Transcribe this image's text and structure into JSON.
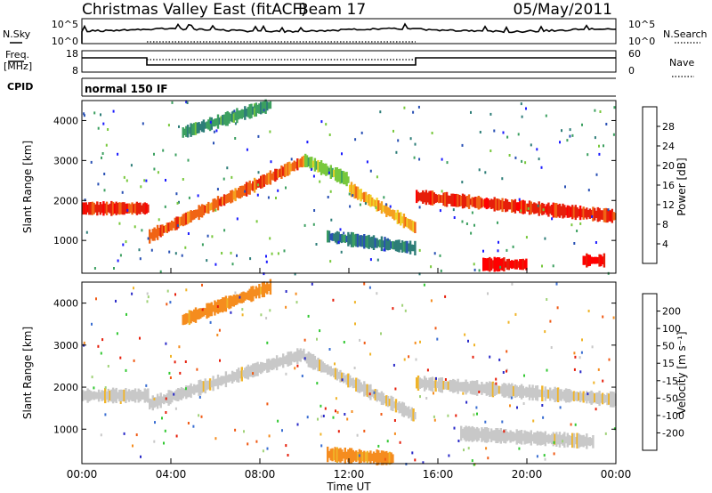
{
  "header": {
    "title": "Christmas Valley East (fitACF)",
    "beam": "Beam 17",
    "date": "05/May/2011"
  },
  "top_panels": {
    "nsky_label": "N.Sky",
    "nsky_tick_high": "10^5",
    "nsky_tick_low": "10^0",
    "nsearch_label": "N.Search",
    "nsearch_tick_high": "10^5",
    "nsearch_tick_low": "10^0",
    "freq_label_1": "Freq.",
    "freq_label_2": "[MHz]",
    "freq_tick_high": "18",
    "freq_tick_low": "8",
    "nave_label": "Nave",
    "nave_tick_high": "60",
    "nave_tick_low": "0",
    "cpid_label": "CPID",
    "cpid_value": "normal 150 IF"
  },
  "chart_data": [
    {
      "type": "heatmap",
      "panel": "power",
      "ylabel": "Slant Range [km]",
      "xlabel": "",
      "ylim": [
        180,
        4500
      ],
      "y_ticks": [
        "1000",
        "2000",
        "3000",
        "4000"
      ],
      "colorbar": {
        "label": "Power [dB]",
        "ticks": [
          "4",
          "8",
          "12",
          "16",
          "20",
          "24",
          "28"
        ],
        "colors": [
          "#1a1aff",
          "#2850b4",
          "#2d7d78",
          "#3ca060",
          "#78c83c",
          "#f0d228",
          "#f5a01e",
          "#f06414",
          "#e61e0a",
          "#ff0000"
        ]
      },
      "bands": [
        {
          "start_h": 0.0,
          "end_h": 3.0,
          "range_start_km": 1800,
          "range_end_km": 1800,
          "power_db": 26
        },
        {
          "start_h": 3.0,
          "end_h": 10.0,
          "range_start_km": 1100,
          "range_end_km": 3000,
          "power_db": 25
        },
        {
          "start_h": 10.0,
          "end_h": 12.0,
          "range_start_km": 3000,
          "range_end_km": 2500,
          "power_db": 14
        },
        {
          "start_h": 12.0,
          "end_h": 15.0,
          "range_start_km": 2300,
          "range_end_km": 1300,
          "power_db": 20
        },
        {
          "start_h": 15.0,
          "end_h": 24.0,
          "range_start_km": 2100,
          "range_end_km": 1600,
          "power_db": 27
        },
        {
          "start_h": 18.0,
          "end_h": 20.0,
          "range_start_km": 400,
          "range_end_km": 400,
          "power_db": 30
        },
        {
          "start_h": 22.5,
          "end_h": 23.5,
          "range_start_km": 500,
          "range_end_km": 500,
          "power_db": 30
        },
        {
          "start_h": 4.5,
          "end_h": 8.5,
          "range_start_km": 3700,
          "range_end_km": 4400,
          "power_db": 12
        },
        {
          "start_h": 11.0,
          "end_h": 15.0,
          "range_start_km": 1100,
          "range_end_km": 800,
          "power_db": 10
        }
      ]
    },
    {
      "type": "heatmap",
      "panel": "velocity",
      "ylabel": "Slant Range [km]",
      "xlabel": "Time UT",
      "ylim": [
        180,
        4500
      ],
      "y_ticks": [
        "1000",
        "2000",
        "3000",
        "4000"
      ],
      "x_ticks": [
        "00:00",
        "04:00",
        "08:00",
        "12:00",
        "16:00",
        "20:00",
        "00:00"
      ],
      "colorbar": {
        "label": "Velocity [m s⁻¹]",
        "ticks": [
          "200",
          "100",
          "50",
          "15",
          "-15",
          "-50",
          "-100",
          "-200"
        ],
        "colors": [
          "#2a2ac8",
          "#3a6ed2",
          "#32c832",
          "#a0d278",
          "#c8c8c8",
          "#f0b428",
          "#f58c1e",
          "#f05a14",
          "#e61e0a"
        ]
      },
      "bands": [
        {
          "start_h": 0.0,
          "end_h": 3.0,
          "range_start_km": 1800,
          "range_end_km": 1800,
          "velocity_ms": 0
        },
        {
          "start_h": 3.0,
          "end_h": 10.0,
          "range_start_km": 1600,
          "range_end_km": 2800,
          "velocity_ms": 0
        },
        {
          "start_h": 10.0,
          "end_h": 15.0,
          "range_start_km": 2700,
          "range_end_km": 1300,
          "velocity_ms": 0
        },
        {
          "start_h": 15.0,
          "end_h": 24.0,
          "range_start_km": 2100,
          "range_end_km": 1700,
          "velocity_ms": 0
        },
        {
          "start_h": 17.0,
          "end_h": 23.0,
          "range_start_km": 900,
          "range_end_km": 700,
          "velocity_ms": 0
        },
        {
          "start_h": 4.5,
          "end_h": 8.5,
          "range_start_km": 3600,
          "range_end_km": 4400,
          "velocity_ms": -60
        },
        {
          "start_h": 11.0,
          "end_h": 14.0,
          "range_start_km": 400,
          "range_end_km": 300,
          "velocity_ms": -60
        }
      ]
    }
  ]
}
